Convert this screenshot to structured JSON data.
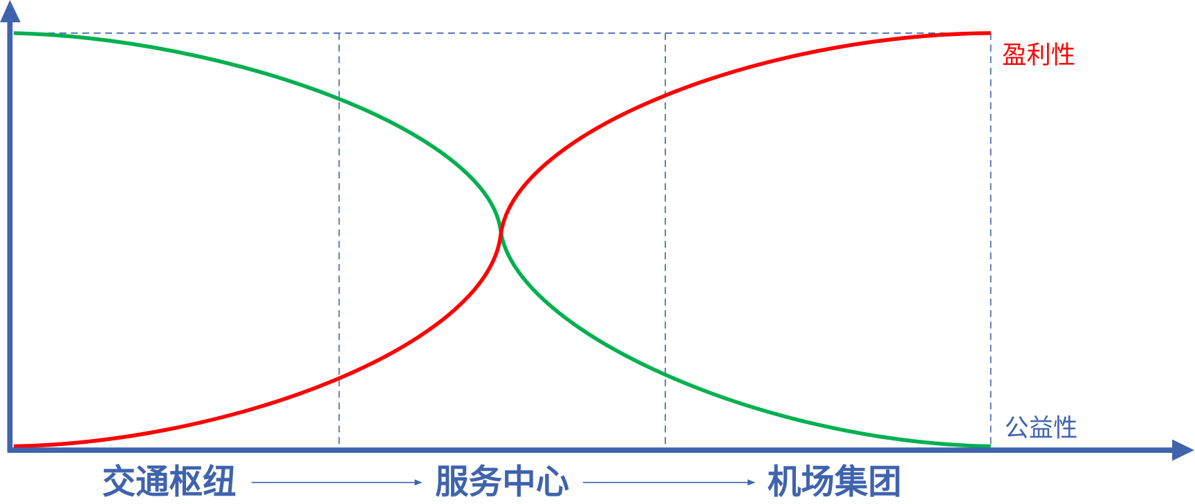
{
  "labels": {
    "profitability": "盈利性",
    "public_welfare": "公益性"
  },
  "stages": [
    "交通枢纽",
    "服务中心",
    "机场集团"
  ]
}
